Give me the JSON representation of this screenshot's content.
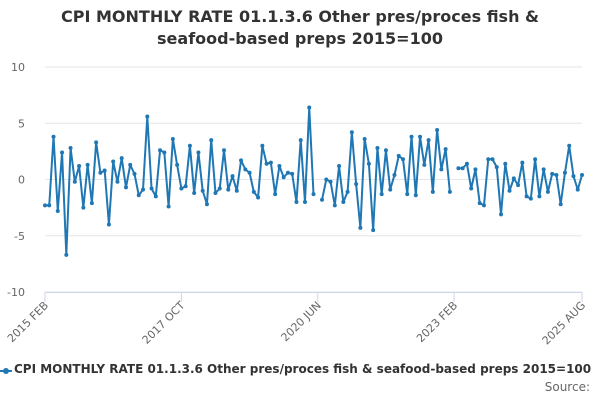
{
  "chart_data": {
    "type": "line",
    "title_line1": "CPI MONTHLY RATE 01.1.3.6 Other pres/proces fish &",
    "title_line2": "seafood-based preps 2015=100",
    "ylim": [
      -10,
      10
    ],
    "yticks": [
      10,
      5,
      0,
      -5,
      -10
    ],
    "x_tick_labels": [
      "2015 FEB",
      "2017 OCT",
      "2020 JUN",
      "2023 FEB",
      "2025 AUG"
    ],
    "x_tick_indices": [
      0,
      32,
      64,
      96,
      126
    ],
    "color": "#1f77b4",
    "series": [
      {
        "name": "CPI MONTHLY RATE 01.1.3.6 Other pres/proces fish & seafood-based preps 2015=100",
        "values": [
          -2.3,
          -2.3,
          3.8,
          -2.8,
          2.4,
          -6.7,
          2.8,
          -0.2,
          1.2,
          -2.5,
          1.3,
          -2.1,
          3.3,
          0.6,
          0.8,
          -4.0,
          1.6,
          -0.2,
          1.9,
          -0.7,
          1.3,
          0.5,
          -1.4,
          -0.9,
          5.6,
          -0.8,
          -1.5,
          2.6,
          2.4,
          -2.4,
          3.6,
          1.3,
          -0.8,
          -0.6,
          3.0,
          -1.2,
          2.4,
          -1.0,
          -2.2,
          3.5,
          -1.2,
          -0.8,
          2.6,
          -0.9,
          0.3,
          -1.0,
          1.7,
          0.9,
          0.6,
          -1.1,
          -1.6,
          3.0,
          1.4,
          1.5,
          -1.3,
          1.2,
          0.2,
          0.6,
          0.5,
          -2.0,
          3.5,
          -2.0,
          6.4,
          -1.3,
          null,
          -1.8,
          0.0,
          -0.2,
          -2.3,
          1.2,
          -2.0,
          -1.1,
          4.2,
          -0.4,
          -4.3,
          3.6,
          1.4,
          -4.5,
          2.8,
          -1.3,
          2.6,
          -0.9,
          0.4,
          2.1,
          1.8,
          -1.3,
          3.8,
          -1.4,
          3.8,
          1.3,
          3.5,
          -1.1,
          4.4,
          0.9,
          2.7,
          -1.1,
          null,
          1.0,
          1.0,
          1.4,
          -0.8,
          0.9,
          -2.1,
          -2.3,
          1.8,
          1.8,
          1.1,
          -3.1,
          1.4,
          -1.0,
          0.1,
          -0.5,
          1.5,
          -1.5,
          -1.7,
          1.8,
          -1.5,
          0.9,
          -1.1,
          0.5,
          0.4,
          -2.2,
          0.6,
          3.0,
          0.3,
          -0.9,
          0.4
        ]
      }
    ]
  },
  "legend": {
    "label": "CPI MONTHLY RATE 01.1.3.6 Other pres/proces fish & seafood-based preps 2015=100"
  },
  "source": {
    "label": "Source:"
  }
}
